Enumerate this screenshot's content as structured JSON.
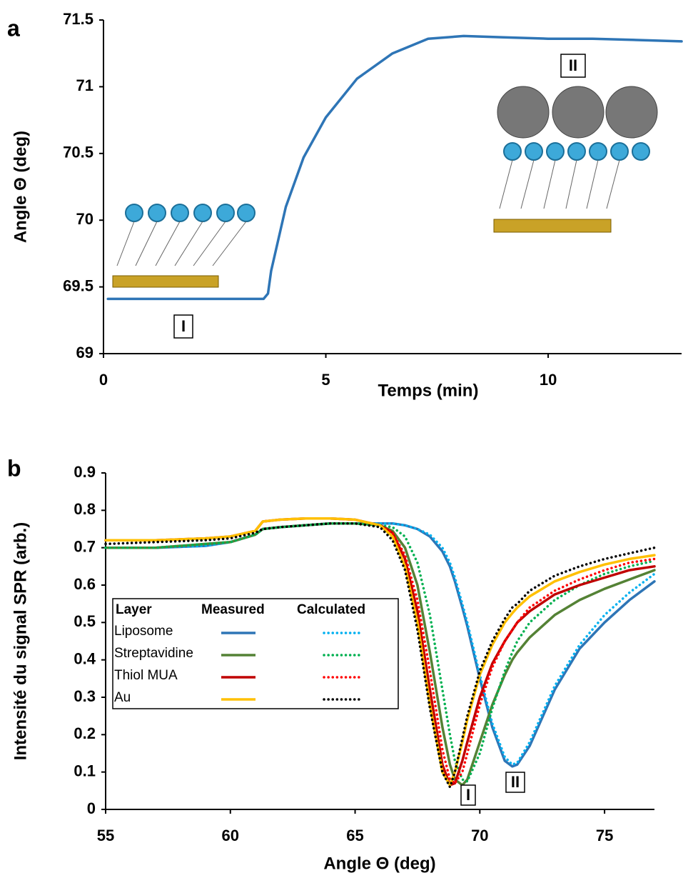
{
  "chart_data": [
    {
      "type": "line",
      "panel_label": "a",
      "x_label": "Temps (min)",
      "y_label": "Angle Θ (deg)",
      "x": [
        0.1,
        1,
        2,
        3,
        3.6,
        3.7,
        3.77,
        4.1,
        4.5,
        5,
        5.7,
        6.5,
        7.3,
        8.1,
        9,
        10,
        11,
        12,
        13
      ],
      "values": [
        69.41,
        69.41,
        69.41,
        69.41,
        69.41,
        69.45,
        69.62,
        70.1,
        70.47,
        70.77,
        71.06,
        71.25,
        71.36,
        71.38,
        71.37,
        71.36,
        71.36,
        71.35,
        71.34
      ],
      "color": "#2e75b6",
      "xlim": [
        0,
        13
      ],
      "ylim": [
        69,
        71.5
      ],
      "xticks": [
        0,
        5,
        10
      ],
      "yticks": [
        69,
        69.5,
        70,
        70.5,
        71,
        71.5
      ],
      "annotations": [
        "I",
        "II"
      ]
    },
    {
      "type": "line",
      "panel_label": "b",
      "x_label": "Angle Θ (deg)",
      "y_label": "Intensité du signal SPR (arb.)",
      "legend_header": [
        "Layer",
        "Measured",
        "Calculated"
      ],
      "x": [
        55,
        57,
        59,
        60,
        61,
        61.3,
        62,
        63,
        64,
        65,
        66,
        66.5,
        67,
        67.5,
        68,
        68.5,
        68.8,
        69,
        69.3,
        69.5,
        70,
        70.5,
        71,
        71.3,
        71.5,
        72,
        73,
        74,
        75,
        76,
        77
      ],
      "series": [
        {
          "name": "Liposome",
          "color": "#2e75b6",
          "calculated_color": "#00b0f0",
          "values": [
            0.7,
            0.7,
            0.705,
            0.715,
            0.735,
            0.75,
            0.755,
            0.76,
            0.765,
            0.765,
            0.765,
            0.765,
            0.76,
            0.75,
            0.73,
            0.69,
            0.65,
            0.61,
            0.54,
            0.49,
            0.35,
            0.22,
            0.13,
            0.115,
            0.12,
            0.17,
            0.32,
            0.43,
            0.5,
            0.56,
            0.61
          ],
          "calculated_values": [
            0.7,
            0.7,
            0.705,
            0.715,
            0.735,
            0.75,
            0.755,
            0.76,
            0.765,
            0.765,
            0.765,
            0.765,
            0.76,
            0.75,
            0.735,
            0.7,
            0.66,
            0.62,
            0.55,
            0.5,
            0.36,
            0.23,
            0.14,
            0.12,
            0.125,
            0.18,
            0.33,
            0.44,
            0.52,
            0.58,
            0.63
          ]
        },
        {
          "name": "Streptavidine",
          "color": "#548235",
          "calculated_color": "#00b050",
          "values": [
            0.7,
            0.7,
            0.71,
            0.715,
            0.735,
            0.75,
            0.755,
            0.76,
            0.765,
            0.765,
            0.76,
            0.745,
            0.7,
            0.6,
            0.42,
            0.22,
            0.12,
            0.08,
            0.065,
            0.08,
            0.18,
            0.28,
            0.36,
            0.4,
            0.42,
            0.46,
            0.52,
            0.56,
            0.59,
            0.615,
            0.64
          ],
          "calculated_values": [
            0.7,
            0.7,
            0.71,
            0.715,
            0.735,
            0.75,
            0.755,
            0.76,
            0.765,
            0.765,
            0.76,
            0.755,
            0.73,
            0.66,
            0.52,
            0.32,
            0.2,
            0.13,
            0.08,
            0.075,
            0.15,
            0.27,
            0.37,
            0.42,
            0.45,
            0.5,
            0.56,
            0.6,
            0.63,
            0.65,
            0.665
          ]
        },
        {
          "name": "Thiol MUA",
          "color": "#c00000",
          "calculated_color": "#ff0000",
          "values": [
            0.72,
            0.72,
            0.725,
            0.73,
            0.745,
            0.77,
            0.775,
            0.778,
            0.778,
            0.775,
            0.76,
            0.74,
            0.67,
            0.53,
            0.32,
            0.12,
            0.065,
            0.07,
            0.13,
            0.18,
            0.3,
            0.39,
            0.45,
            0.48,
            0.5,
            0.53,
            0.575,
            0.6,
            0.62,
            0.64,
            0.65
          ],
          "calculated_values": [
            0.72,
            0.72,
            0.725,
            0.73,
            0.745,
            0.77,
            0.775,
            0.778,
            0.778,
            0.775,
            0.76,
            0.74,
            0.68,
            0.56,
            0.37,
            0.16,
            0.08,
            0.07,
            0.1,
            0.15,
            0.28,
            0.38,
            0.45,
            0.48,
            0.5,
            0.54,
            0.585,
            0.615,
            0.64,
            0.66,
            0.67
          ]
        },
        {
          "name": "Au",
          "color": "#ffc000",
          "calculated_color": "#000000",
          "values": [
            0.72,
            0.72,
            0.725,
            0.73,
            0.745,
            0.77,
            0.775,
            0.778,
            0.778,
            0.775,
            0.76,
            0.73,
            0.65,
            0.5,
            0.28,
            0.1,
            0.065,
            0.1,
            0.18,
            0.24,
            0.36,
            0.44,
            0.5,
            0.525,
            0.54,
            0.57,
            0.61,
            0.635,
            0.655,
            0.67,
            0.68
          ],
          "calculated_values": [
            0.71,
            0.715,
            0.72,
            0.725,
            0.74,
            0.75,
            0.755,
            0.76,
            0.765,
            0.765,
            0.755,
            0.72,
            0.64,
            0.48,
            0.27,
            0.1,
            0.06,
            0.1,
            0.19,
            0.25,
            0.37,
            0.45,
            0.51,
            0.54,
            0.55,
            0.585,
            0.625,
            0.65,
            0.67,
            0.685,
            0.7
          ]
        }
      ],
      "xlim": [
        55,
        77
      ],
      "ylim": [
        0,
        0.9
      ],
      "xticks": [
        55,
        60,
        65,
        70,
        75
      ],
      "yticks": [
        0,
        0.1,
        0.2,
        0.3,
        0.4,
        0.5,
        0.6,
        0.7,
        0.8,
        0.9
      ],
      "annotations": [
        "I",
        "II"
      ]
    }
  ]
}
